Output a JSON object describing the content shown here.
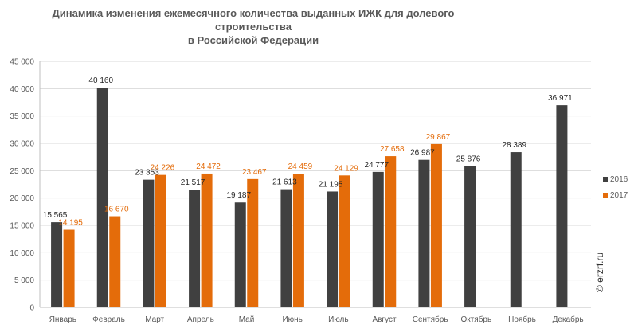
{
  "chart_data": {
    "type": "bar",
    "title": "Динамика изменения ежемесячного количества выданных ИЖК для долевого строительства в Российской Федерации",
    "title_lines": [
      "Динамика изменения ежемесячного количества выданных ИЖК для долевого",
      "строительства",
      "в Российской  Федерации"
    ],
    "categories": [
      "Январь",
      "Февраль",
      "Март",
      "Апрель",
      "Май",
      "Июнь",
      "Июль",
      "Август",
      "Сентябрь",
      "Октябрь",
      "Ноябрь",
      "Декабрь"
    ],
    "series": [
      {
        "name": "2016",
        "color": "#404040",
        "values": [
          15565,
          40160,
          23353,
          21517,
          19187,
          21613,
          21195,
          24777,
          26987,
          25876,
          28389,
          36971
        ],
        "labels": [
          "15 565",
          "40 160",
          "23 353",
          "21 517",
          "19 187",
          "21 613",
          "21 195",
          "24 777",
          "26 987",
          "25 876",
          "28 389",
          "36 971"
        ]
      },
      {
        "name": "2017",
        "color": "#E46C0A",
        "values": [
          14195,
          16670,
          24226,
          24472,
          23467,
          24459,
          24129,
          27658,
          29867,
          null,
          null,
          null
        ],
        "labels": [
          "14 195",
          "16 670",
          "24 226",
          "24 472",
          "23 467",
          "24 459",
          "24 129",
          "27 658",
          "29 867",
          "",
          "",
          ""
        ]
      }
    ],
    "ylim": [
      0,
      45000
    ],
    "yticks": [
      0,
      5000,
      10000,
      15000,
      20000,
      25000,
      30000,
      35000,
      40000,
      45000
    ],
    "ytick_labels": [
      "0",
      "5 000",
      "10 000",
      "15 000",
      "20 000",
      "25 000",
      "30 000",
      "35 000",
      "40 000",
      "45 000"
    ],
    "xlabel": "",
    "ylabel": "",
    "grid": true,
    "legend_position": "right"
  },
  "watermark": "© erzrf.ru"
}
